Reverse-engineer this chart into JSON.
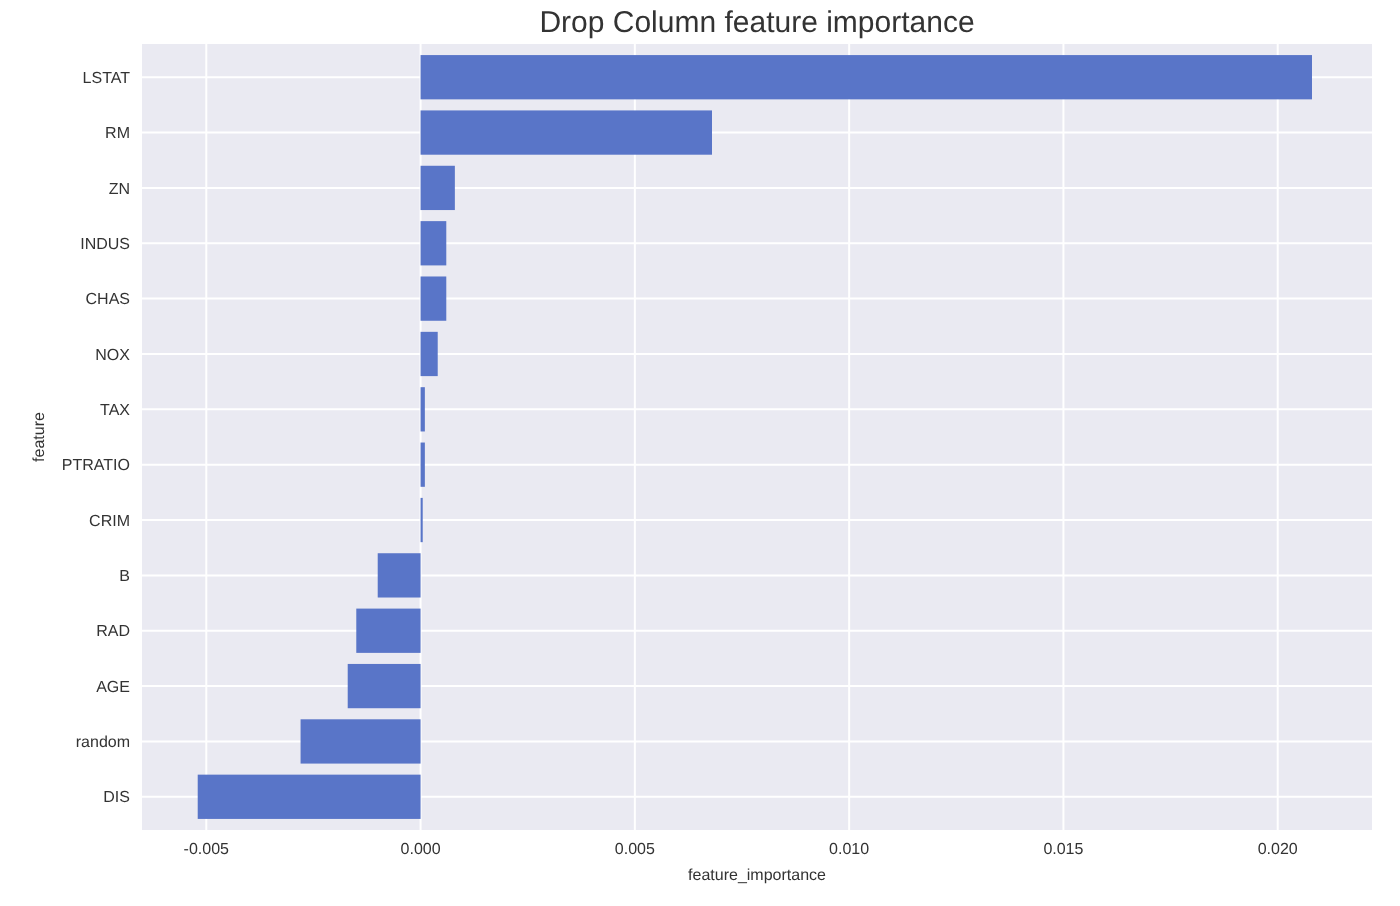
{
  "chart_data": {
    "type": "bar",
    "orientation": "horizontal",
    "title": "Drop Column feature importance",
    "xlabel": "feature_importance",
    "ylabel": "feature",
    "categories": [
      "LSTAT",
      "RM",
      "ZN",
      "INDUS",
      "CHAS",
      "NOX",
      "TAX",
      "PTRATIO",
      "CRIM",
      "B",
      "RAD",
      "AGE",
      "random",
      "DIS"
    ],
    "values": [
      0.0208,
      0.0068,
      0.0008,
      0.0006,
      0.0006,
      0.0004,
      0.0001,
      0.0001,
      5e-05,
      -0.001,
      -0.0015,
      -0.0017,
      -0.0028,
      -0.0052
    ],
    "color": "#5975c8",
    "xlim": [
      -0.0065,
      0.0222
    ],
    "xticks": [
      {
        "value": -0.005,
        "label": "-0.005"
      },
      {
        "value": 0,
        "label": "0.000"
      },
      {
        "value": 0.005,
        "label": "0.005"
      },
      {
        "value": 0.01,
        "label": "0.010"
      },
      {
        "value": 0.015,
        "label": "0.015"
      },
      {
        "value": 0.02,
        "label": "0.020"
      }
    ],
    "grid": true
  }
}
